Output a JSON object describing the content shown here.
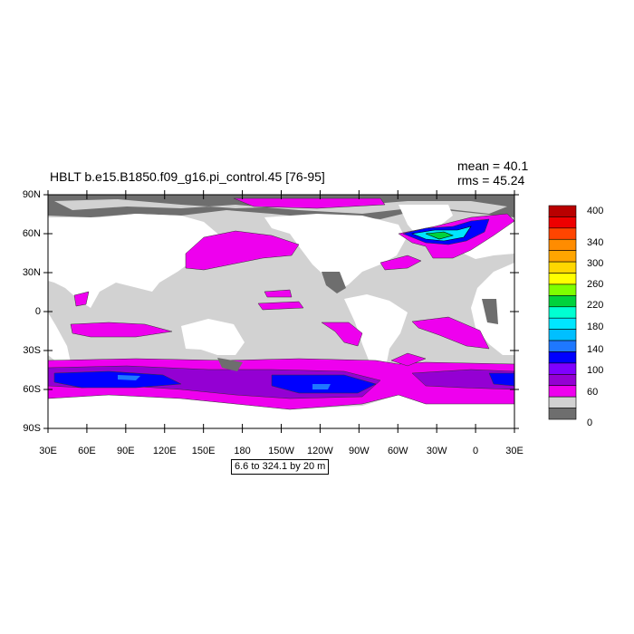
{
  "header": {
    "title": "HBLT b.e15.B1850.f09_g16.pi_control.45 [76-95]",
    "mean_text": "mean = 40.1",
    "rms_text": "rms = 45.24"
  },
  "subtitle": "6.6 to 324.1 by 20 m",
  "map": {
    "projection": "cylindrical-equidistant",
    "lon_labels": [
      "30E",
      "60E",
      "90E",
      "120E",
      "150E",
      "180",
      "150W",
      "120W",
      "90W",
      "60W",
      "30W",
      "0",
      "30E"
    ],
    "lat_labels": [
      "90N",
      "60N",
      "30N",
      "0",
      "30S",
      "60S",
      "90S"
    ],
    "land_color": "#ffffff",
    "missing_color": "#6e6e6e",
    "ocean_base_color": "#d2d2d2"
  },
  "colorbar": {
    "labels": [
      "400",
      "340",
      "300",
      "260",
      "220",
      "180",
      "140",
      "100",
      "60",
      "0"
    ],
    "colors_top_to_bottom": [
      "#b90000",
      "#ee0000",
      "#ff4500",
      "#ff8c00",
      "#ffa500",
      "#ffd700",
      "#ffff00",
      "#7fff00",
      "#00d23c",
      "#00ffd2",
      "#00e6ff",
      "#00bfff",
      "#1e78ff",
      "#0000ff",
      "#7f00ff",
      "#9400d3",
      "#ee00ee",
      "#d2d2d2",
      "#6e6e6e"
    ]
  }
}
